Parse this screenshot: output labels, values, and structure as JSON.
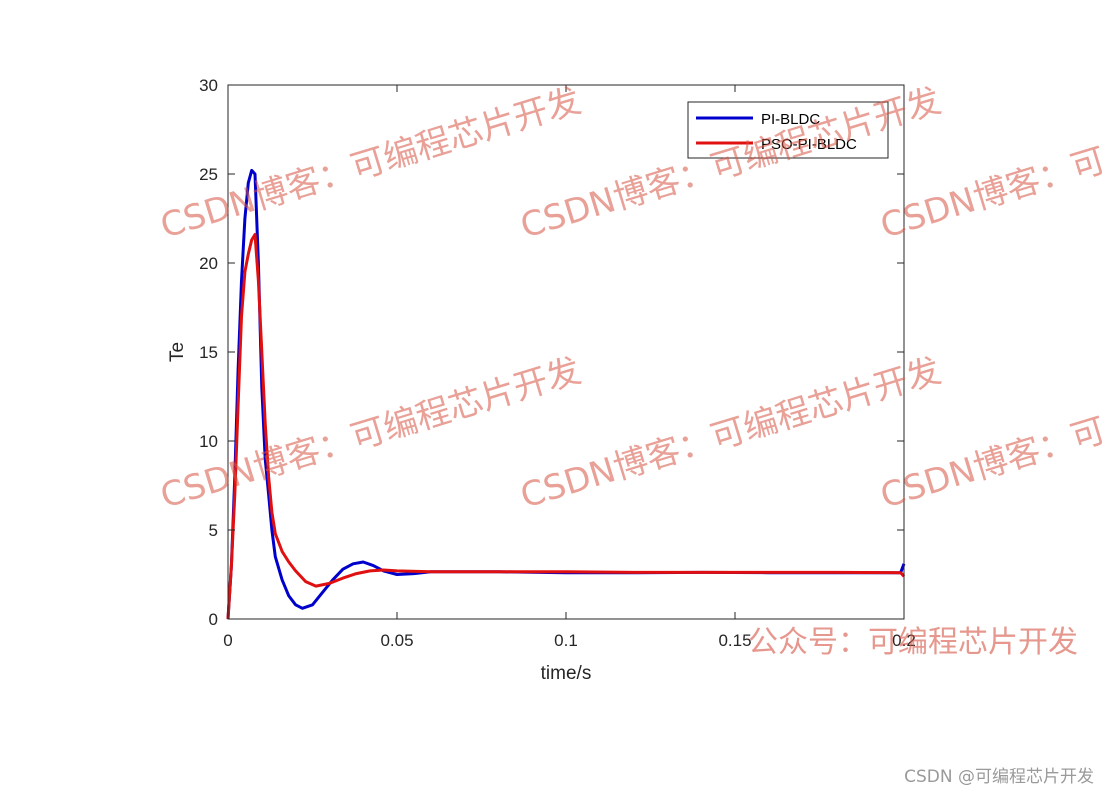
{
  "chart_data": {
    "type": "line",
    "xlabel": "time/s",
    "ylabel": "Te",
    "xlim": [
      0,
      0.2
    ],
    "ylim": [
      0,
      30
    ],
    "xticks": [
      0,
      0.05,
      0.1,
      0.15,
      0.2
    ],
    "xtick_labels": [
      "0",
      "0.05",
      "0.1",
      "0.15",
      "0.2"
    ],
    "yticks": [
      0,
      5,
      10,
      15,
      20,
      25,
      30
    ],
    "ytick_labels": [
      "0",
      "5",
      "10",
      "15",
      "20",
      "25",
      "30"
    ],
    "grid": false,
    "legend_position": "top-right",
    "series": [
      {
        "name": "PI-BLDC",
        "color": "#0000cc",
        "points": [
          [
            0,
            0
          ],
          [
            0.001,
            3
          ],
          [
            0.002,
            8
          ],
          [
            0.003,
            14
          ],
          [
            0.004,
            19
          ],
          [
            0.005,
            22.5
          ],
          [
            0.006,
            24.5
          ],
          [
            0.007,
            25.2
          ],
          [
            0.008,
            25
          ],
          [
            0.009,
            20
          ],
          [
            0.01,
            13
          ],
          [
            0.011,
            9
          ],
          [
            0.012,
            7
          ],
          [
            0.013,
            5
          ],
          [
            0.014,
            3.5
          ],
          [
            0.016,
            2.2
          ],
          [
            0.018,
            1.3
          ],
          [
            0.02,
            0.8
          ],
          [
            0.022,
            0.6
          ],
          [
            0.025,
            0.8
          ],
          [
            0.028,
            1.5
          ],
          [
            0.031,
            2.2
          ],
          [
            0.034,
            2.8
          ],
          [
            0.037,
            3.1
          ],
          [
            0.04,
            3.2
          ],
          [
            0.043,
            3
          ],
          [
            0.046,
            2.7
          ],
          [
            0.05,
            2.5
          ],
          [
            0.055,
            2.55
          ],
          [
            0.06,
            2.65
          ],
          [
            0.08,
            2.65
          ],
          [
            0.1,
            2.6
          ],
          [
            0.12,
            2.6
          ],
          [
            0.14,
            2.62
          ],
          [
            0.16,
            2.6
          ],
          [
            0.18,
            2.6
          ],
          [
            0.199,
            2.6
          ],
          [
            0.2,
            3.1
          ]
        ]
      },
      {
        "name": "PSO-PI-BLDC",
        "color": "#e01010",
        "points": [
          [
            0,
            0
          ],
          [
            0.001,
            3
          ],
          [
            0.002,
            7
          ],
          [
            0.003,
            12
          ],
          [
            0.004,
            17
          ],
          [
            0.005,
            19.5
          ],
          [
            0.006,
            20.5
          ],
          [
            0.007,
            21.3
          ],
          [
            0.008,
            21.6
          ],
          [
            0.009,
            19
          ],
          [
            0.01,
            15
          ],
          [
            0.011,
            11
          ],
          [
            0.012,
            8
          ],
          [
            0.013,
            6
          ],
          [
            0.014,
            4.8
          ],
          [
            0.016,
            3.8
          ],
          [
            0.018,
            3.2
          ],
          [
            0.02,
            2.7
          ],
          [
            0.023,
            2.1
          ],
          [
            0.026,
            1.85
          ],
          [
            0.03,
            2
          ],
          [
            0.034,
            2.3
          ],
          [
            0.038,
            2.55
          ],
          [
            0.042,
            2.7
          ],
          [
            0.046,
            2.75
          ],
          [
            0.05,
            2.7
          ],
          [
            0.06,
            2.65
          ],
          [
            0.08,
            2.65
          ],
          [
            0.1,
            2.65
          ],
          [
            0.12,
            2.62
          ],
          [
            0.14,
            2.62
          ],
          [
            0.16,
            2.62
          ],
          [
            0.18,
            2.62
          ],
          [
            0.199,
            2.6
          ],
          [
            0.2,
            2.4
          ]
        ]
      }
    ]
  },
  "watermarks": [
    "CSDN博客：可编程芯片开发",
    "公众号：可编程芯片开发",
    "CSDN @可编程芯片开发"
  ]
}
